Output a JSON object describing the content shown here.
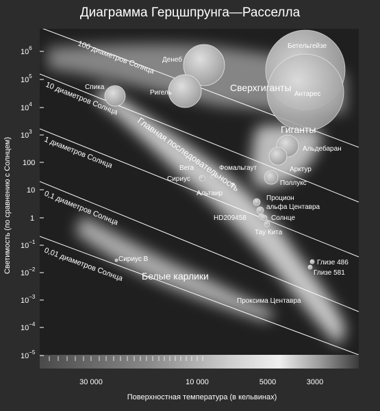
{
  "title": "Диаграмма Герцшпрунга—Расселла",
  "x_axis": {
    "label": "Поверхностная температура (в кельвинах)",
    "ticks": [
      "30 000",
      "10 000",
      "5000",
      "3000"
    ]
  },
  "y_axis": {
    "label": "Светимость (по сравнению с Солнцем)",
    "ticks": [
      {
        "base": "10",
        "exp": "6"
      },
      {
        "base": "10",
        "exp": "5"
      },
      {
        "base": "10",
        "exp": "4"
      },
      {
        "base": "10",
        "exp": "3"
      },
      {
        "base": "100",
        "exp": ""
      },
      {
        "base": "10",
        "exp": ""
      },
      {
        "base": "1",
        "exp": ""
      },
      {
        "base": "10",
        "exp": "−1"
      },
      {
        "base": "10",
        "exp": "−2"
      },
      {
        "base": "10",
        "exp": "−3"
      },
      {
        "base": "10",
        "exp": "−4"
      },
      {
        "base": "10",
        "exp": "−5"
      }
    ]
  },
  "diameter_lines": [
    "100 диаметров Солнца",
    "10 диаметров Солнца",
    "1 диаметров Солнца",
    "0,1 диаметров Солнца",
    "0,01 диаметров Солнца"
  ],
  "regions": {
    "supergiants": "Сверхгиганты",
    "giants": "Гиганты",
    "main_sequence": "Главная последовательность",
    "white_dwarfs": "Белые карлики"
  },
  "stars": [
    {
      "name": "Бетельгейзе"
    },
    {
      "name": "Денеб"
    },
    {
      "name": "Спика"
    },
    {
      "name": "Ригель"
    },
    {
      "name": "Антарес"
    },
    {
      "name": "Альдебаран"
    },
    {
      "name": "Арктур"
    },
    {
      "name": "Вега"
    },
    {
      "name": "Сириус"
    },
    {
      "name": "Фомальгаут"
    },
    {
      "name": "Поллукс"
    },
    {
      "name": "Альтаир"
    },
    {
      "name": "Процион"
    },
    {
      "name": "альфа Центавра"
    },
    {
      "name": "HD209458"
    },
    {
      "name": "Солнце"
    },
    {
      "name": "Тау Кита"
    },
    {
      "name": "Сириус B"
    },
    {
      "name": "Глизе 486"
    },
    {
      "name": "Глизе 581"
    },
    {
      "name": "Проксима Центавра"
    }
  ],
  "colors": {
    "background": "#2c2c2c",
    "plot_background": "#1f1f1f",
    "region": "#d8d8d8",
    "star": "#bdbdbd",
    "line": "#ffffff"
  }
}
